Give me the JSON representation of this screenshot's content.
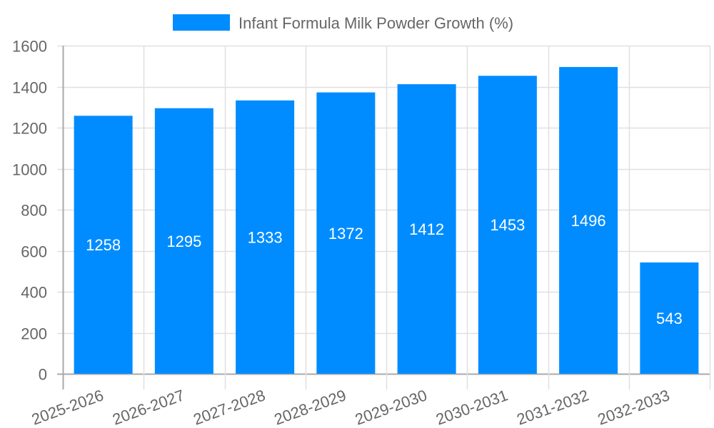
{
  "chart_data": {
    "type": "bar",
    "title": "",
    "xlabel": "",
    "ylabel": "",
    "categories": [
      "2025-2026",
      "2026-2027",
      "2027-2028",
      "2028-2029",
      "2029-2030",
      "2030-2031",
      "2031-2032",
      "2032-2033"
    ],
    "series": [
      {
        "name": "Infant Formula Milk Powder Growth (%)",
        "color": "#008cff",
        "values": [
          1258,
          1295,
          1333,
          1372,
          1412,
          1453,
          1496,
          543
        ]
      }
    ],
    "ylim": [
      0,
      1600
    ],
    "yticks": [
      0,
      200,
      400,
      600,
      800,
      1000,
      1200,
      1400,
      1600
    ],
    "grid": true,
    "legend_position": "top",
    "data_labels": true,
    "x_label_rotation": -20
  },
  "legend": {
    "label": "Infant Formula Milk Powder Growth (%)",
    "color": "#008cff"
  },
  "colors": {
    "bar": "#008cff",
    "grid": "#e0e0e0",
    "axis": "#aaaaaa",
    "text": "#666666",
    "bar_label": "#ffffff"
  }
}
